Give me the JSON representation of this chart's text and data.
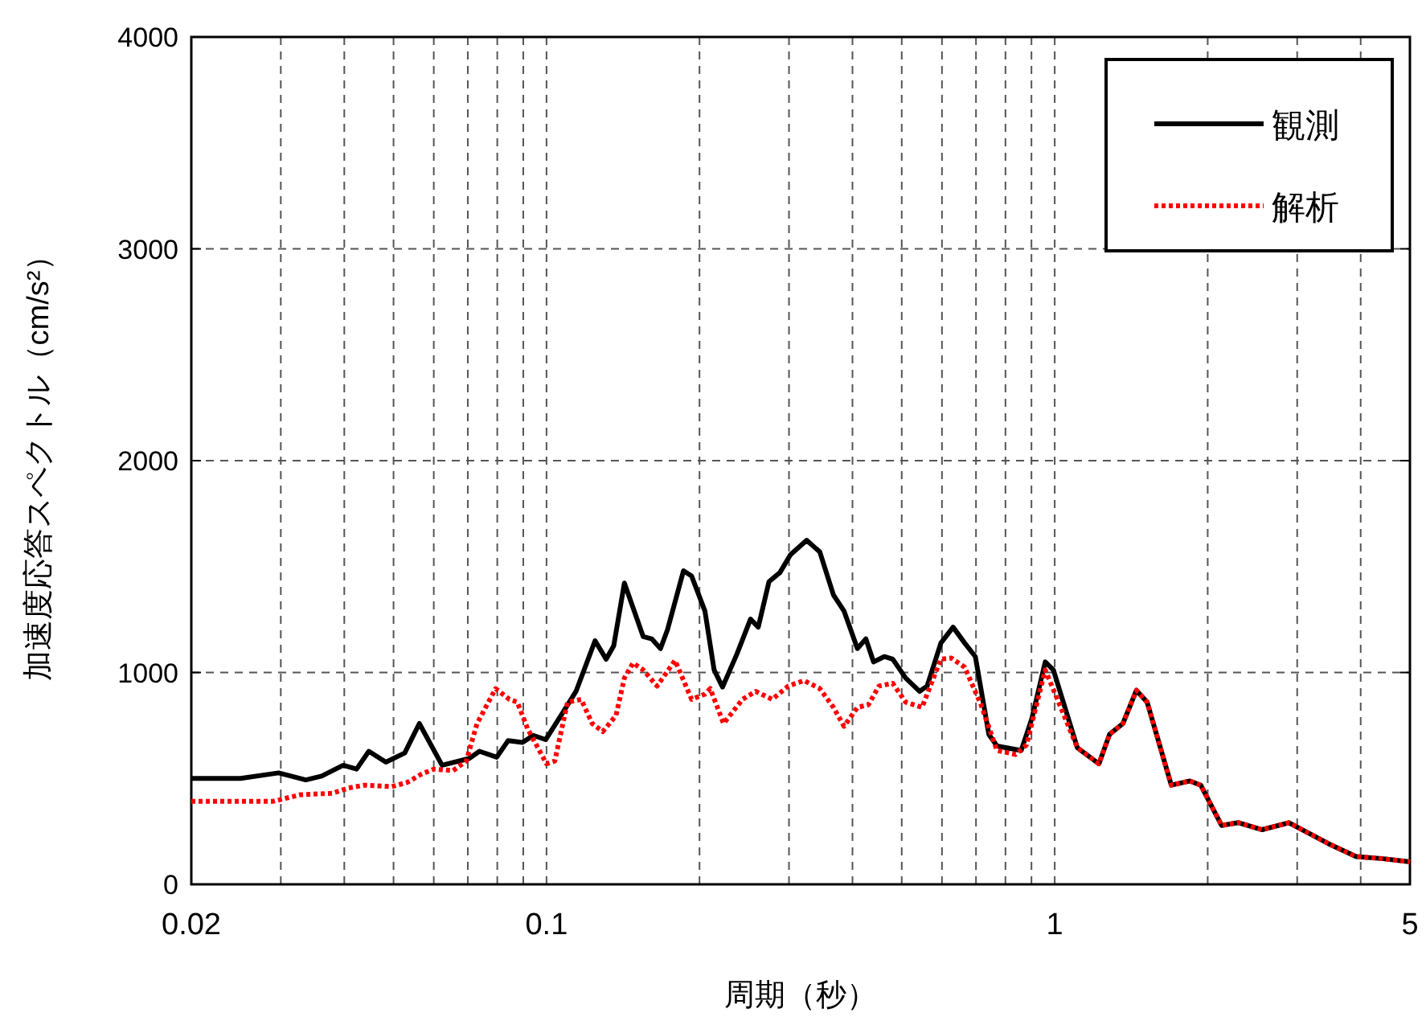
{
  "chart_data": {
    "type": "line",
    "xlabel": "周期（秒）",
    "ylabel": "加速度応答スペクトル（cm/s²）",
    "log": "x",
    "grid": true,
    "legend": "top right",
    "xlim": [
      0.02,
      5
    ],
    "ylim": [
      0,
      4000
    ],
    "xticks": [
      {
        "value": 0.02,
        "label": "0.02"
      },
      {
        "value": 0.03,
        "label": null
      },
      {
        "value": 0.04,
        "label": null
      },
      {
        "value": 0.05,
        "label": null
      },
      {
        "value": 0.06,
        "label": null
      },
      {
        "value": 0.07,
        "label": null
      },
      {
        "value": 0.08,
        "label": null
      },
      {
        "value": 0.09,
        "label": null
      },
      0.1,
      {
        "value": 0.2,
        "label": null
      },
      {
        "value": 0.3,
        "label": null
      },
      {
        "value": 0.4,
        "label": null
      },
      {
        "value": 0.5,
        "label": null
      },
      {
        "value": 0.6,
        "label": null
      },
      {
        "value": 0.7,
        "label": null
      },
      {
        "value": 0.8,
        "label": null
      },
      {
        "value": 0.9,
        "label": null
      },
      1,
      {
        "value": 2,
        "label": null
      },
      {
        "value": 3,
        "label": null
      },
      {
        "value": 4,
        "label": null
      },
      5
    ],
    "yticks": [
      0,
      1000,
      2000,
      3000,
      4000
    ],
    "series": [
      {
        "name": "観測",
        "color": "#000000",
        "line_style": "solid",
        "x": [
          0.02,
          0.025,
          0.0297,
          0.0336,
          0.0361,
          0.0398,
          0.0423,
          0.0447,
          0.0483,
          0.0526,
          0.0562,
          0.0623,
          0.0704,
          0.0738,
          0.0798,
          0.084,
          0.0897,
          0.0942,
          0.0996,
          0.1076,
          0.1143,
          0.1246,
          0.131,
          0.1356,
          0.1423,
          0.155,
          0.161,
          0.1676,
          0.173,
          0.186,
          0.193,
          0.205,
          0.2137,
          0.222,
          0.237,
          0.252,
          0.261,
          0.274,
          0.288,
          0.302,
          0.325,
          0.345,
          0.367,
          0.385,
          0.409,
          0.425,
          0.44,
          0.462,
          0.48,
          0.509,
          0.542,
          0.561,
          0.597,
          0.631,
          0.665,
          0.698,
          0.742,
          0.77,
          0.859,
          0.902,
          0.958,
          0.994,
          1.108,
          1.222,
          1.282,
          1.362,
          1.448,
          1.52,
          1.696,
          1.846,
          1.938,
          2.13,
          2.3,
          2.56,
          2.89,
          3.47,
          3.92,
          4.43,
          5.0
        ],
        "values": [
          500,
          500,
          526,
          493,
          511,
          562,
          544,
          628,
          577,
          620,
          759,
          562,
          594,
          628,
          600,
          678,
          670,
          703,
          683,
          810,
          911,
          1150,
          1063,
          1126,
          1422,
          1169,
          1159,
          1113,
          1202,
          1480,
          1455,
          1290,
          1012,
          931,
          1088,
          1252,
          1214,
          1429,
          1472,
          1556,
          1624,
          1569,
          1366,
          1290,
          1113,
          1159,
          1050,
          1075,
          1063,
          974,
          911,
          936,
          1139,
          1214,
          1139,
          1075,
          708,
          653,
          632,
          784,
          1050,
          1012,
          645,
          569,
          708,
          759,
          916,
          860,
          468,
          488,
          468,
          278,
          291,
          258,
          291,
          190,
          131,
          121,
          106
        ]
      },
      {
        "name": "解析",
        "color": "#ff0000",
        "line_style": "dotted",
        "x": [
          0.02,
          0.029,
          0.0328,
          0.0379,
          0.0408,
          0.0438,
          0.0495,
          0.0532,
          0.0566,
          0.06,
          0.0655,
          0.0695,
          0.073,
          0.0794,
          0.0845,
          0.0876,
          0.0918,
          0.1,
          0.1038,
          0.11,
          0.117,
          0.123,
          0.129,
          0.137,
          0.1423,
          0.148,
          0.155,
          0.165,
          0.179,
          0.193,
          0.205,
          0.21,
          0.223,
          0.243,
          0.258,
          0.278,
          0.299,
          0.321,
          0.345,
          0.367,
          0.385,
          0.409,
          0.43,
          0.451,
          0.48,
          0.509,
          0.548,
          0.597,
          0.626,
          0.665,
          0.716,
          0.77,
          0.838,
          0.88,
          0.958,
          1.108,
          1.222,
          1.282,
          1.362,
          1.448,
          1.52,
          1.696,
          1.846,
          1.938,
          2.13,
          2.3,
          2.56,
          2.89,
          3.47,
          3.92,
          4.43,
          5.0
        ],
        "values": [
          392,
          392,
          423,
          430,
          455,
          468,
          461,
          481,
          519,
          544,
          537,
          582,
          759,
          924,
          873,
          860,
          734,
          569,
          582,
          860,
          873,
          759,
          721,
          797,
          974,
          1045,
          1012,
          936,
          1057,
          873,
          898,
          924,
          759,
          873,
          911,
          873,
          936,
          962,
          924,
          835,
          746,
          835,
          848,
          936,
          949,
          860,
          835,
          1063,
          1068,
          1025,
          848,
          632,
          613,
          658,
          1012,
          645,
          569,
          708,
          759,
          916,
          860,
          468,
          488,
          468,
          278,
          291,
          258,
          291,
          190,
          131,
          121,
          106
        ]
      }
    ]
  }
}
